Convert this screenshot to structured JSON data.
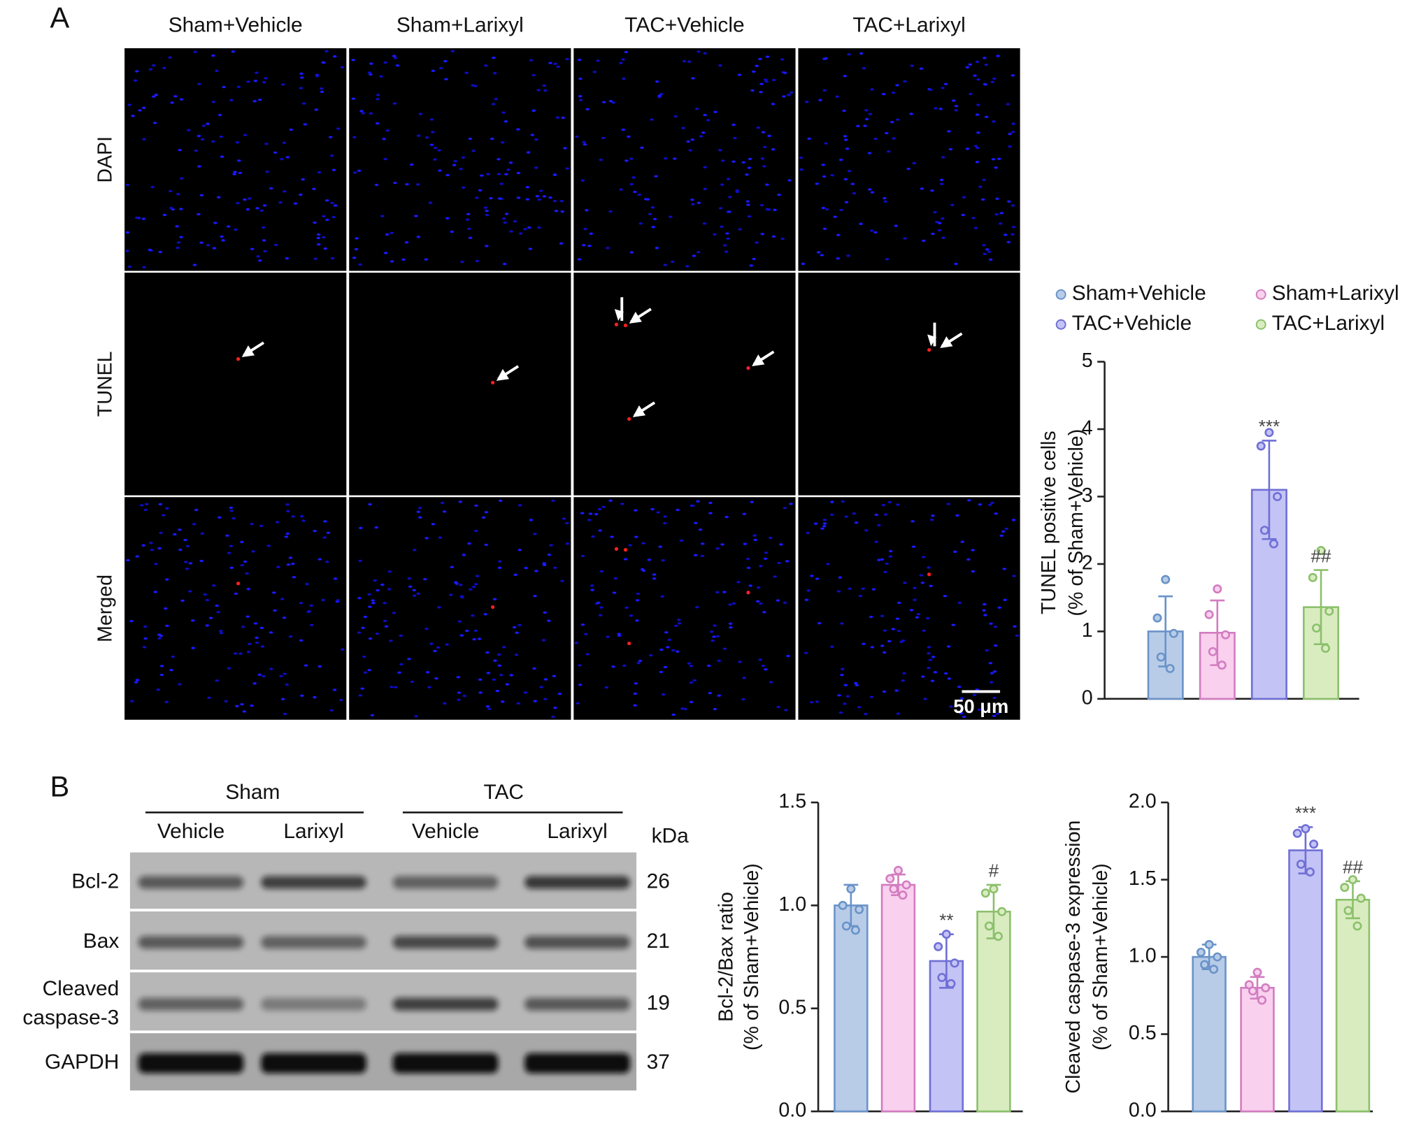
{
  "panel_labels": [
    "A",
    "B"
  ],
  "micrographs": {
    "columns": [
      "Sham+Vehicle",
      "Sham+Larixyl",
      "TAC+Vehicle",
      "TAC+Larixyl"
    ],
    "rows": [
      "DAPI",
      "TUNEL",
      "Merged"
    ],
    "scale_bar": "50 μm"
  },
  "blot": {
    "groups": [
      "Sham",
      "TAC"
    ],
    "lanes": [
      "Vehicle",
      "Larixyl",
      "Vehicle",
      "Larixyl"
    ],
    "unit": "kDa",
    "bands": [
      {
        "label": [
          "Bcl-2"
        ],
        "kda": 26
      },
      {
        "label": [
          "Bax"
        ],
        "kda": 21
      },
      {
        "label": [
          "Cleaved",
          "caspase-3"
        ],
        "kda": 19
      },
      {
        "label": [
          "GAPDH"
        ],
        "kda": 37
      }
    ]
  },
  "chart_data": [
    {
      "type": "bar",
      "ylabel": [
        "TUNEL positive cells",
        "(% of Sham+Vehicle)"
      ],
      "ylim": [
        0,
        5
      ],
      "yticks": [
        0,
        1,
        2,
        3,
        4,
        5
      ],
      "legend": "top",
      "series": [
        {
          "name": "Sham+Vehicle",
          "color": "#b8cce8",
          "edge_color": "#6a93c8",
          "values": [
            1.0
          ],
          "errors": [
            0.52
          ],
          "points": [
            [
              1.77,
              1.2,
              0.97,
              0.62,
              0.45
            ]
          ]
        },
        {
          "name": "Sham+Larixyl",
          "color": "#f9d0ee",
          "edge_color": "#d27cc0",
          "values": [
            0.98
          ],
          "errors": [
            0.48
          ],
          "points": [
            [
              1.63,
              1.25,
              0.95,
              0.7,
              0.5
            ]
          ]
        },
        {
          "name": "TAC+Vehicle",
          "color": "#c3c3f5",
          "edge_color": "#6f6fd6",
          "values": [
            3.1
          ],
          "errors": [
            0.73
          ],
          "points": [
            [
              3.95,
              3.75,
              3.0,
              2.5,
              2.3
            ]
          ],
          "annotation": "***"
        },
        {
          "name": "TAC+Larixyl",
          "color": "#d9ecc0",
          "edge_color": "#8cc06c",
          "values": [
            1.36
          ],
          "errors": [
            0.55
          ],
          "points": [
            [
              2.2,
              1.8,
              1.3,
              1.05,
              0.75
            ]
          ],
          "annotation": "##"
        }
      ]
    },
    {
      "type": "bar",
      "ylabel": [
        "Bcl-2/Bax ratio",
        "(% of Sham+Vehicle)"
      ],
      "ylim": [
        0,
        1.5
      ],
      "yticks": [
        {
          "value": 0,
          "label": "0.0"
        },
        {
          "value": 0.5,
          "label": "0.5"
        },
        {
          "value": 1,
          "label": "1.0"
        },
        {
          "value": 1.5,
          "label": "1.5"
        }
      ],
      "series": [
        {
          "color": "#b8cce8",
          "edge_color": "#6a93c8",
          "values": [
            1.0
          ],
          "errors": [
            0.1
          ],
          "points": [
            [
              1.08,
              1.0,
              0.98,
              0.9,
              0.88
            ]
          ]
        },
        {
          "color": "#f9d0ee",
          "edge_color": "#d27cc0",
          "values": [
            1.1
          ],
          "errors": [
            0.05
          ],
          "points": [
            [
              1.17,
              1.13,
              1.1,
              1.08,
              1.05
            ]
          ]
        },
        {
          "color": "#c3c3f5",
          "edge_color": "#6f6fd6",
          "values": [
            0.73
          ],
          "errors": [
            0.13
          ],
          "points": [
            [
              0.86,
              0.8,
              0.72,
              0.65,
              0.62
            ]
          ],
          "annotation": "**"
        },
        {
          "color": "#d9ecc0",
          "edge_color": "#8cc06c",
          "values": [
            0.97
          ],
          "errors": [
            0.13
          ],
          "points": [
            [
              1.08,
              1.06,
              0.97,
              0.9,
              0.85
            ]
          ],
          "annotation": "#"
        }
      ]
    },
    {
      "type": "bar",
      "ylabel": [
        "Cleaved caspase-3 expression",
        "(% of Sham+Vehicle)"
      ],
      "ylim": [
        0,
        2
      ],
      "yticks": [
        {
          "value": 0,
          "label": "0.0"
        },
        {
          "value": 0.5,
          "label": "0.5"
        },
        {
          "value": 1,
          "label": "1.0"
        },
        {
          "value": 1.5,
          "label": "1.5"
        },
        {
          "value": 2,
          "label": "2.0"
        }
      ],
      "series": [
        {
          "color": "#b8cce8",
          "edge_color": "#6a93c8",
          "values": [
            1.0
          ],
          "errors": [
            0.08
          ],
          "points": [
            [
              1.08,
              1.03,
              1.0,
              0.95,
              0.92
            ]
          ]
        },
        {
          "color": "#f9d0ee",
          "edge_color": "#d27cc0",
          "values": [
            0.8
          ],
          "errors": [
            0.07
          ],
          "points": [
            [
              0.9,
              0.82,
              0.8,
              0.78,
              0.72
            ]
          ]
        },
        {
          "color": "#c3c3f5",
          "edge_color": "#6f6fd6",
          "values": [
            1.69
          ],
          "errors": [
            0.15
          ],
          "points": [
            [
              1.83,
              1.8,
              1.73,
              1.6,
              1.55
            ]
          ],
          "annotation": "***"
        },
        {
          "color": "#d9ecc0",
          "edge_color": "#8cc06c",
          "values": [
            1.37
          ],
          "errors": [
            0.12
          ],
          "points": [
            [
              1.5,
              1.45,
              1.38,
              1.3,
              1.2
            ]
          ],
          "annotation": "##"
        }
      ]
    }
  ]
}
